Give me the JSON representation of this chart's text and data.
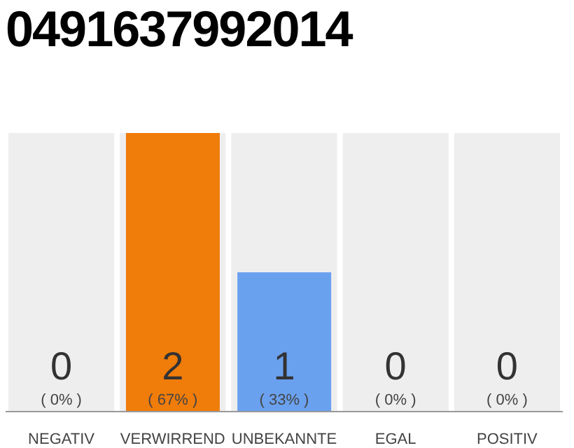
{
  "chart_data": {
    "type": "bar",
    "title": "0491637992014",
    "categories": [
      "NEGATIV",
      "VERWIRREND",
      "UNBEKANNTE",
      "EGAL",
      "POSITIV"
    ],
    "values": [
      0,
      2,
      1,
      0,
      0
    ],
    "colors": [
      "#999999",
      "#f07c0a",
      "#6aa1ef",
      "#999999",
      "#999999"
    ],
    "data_labels": true,
    "annotations": [
      "( 0% )",
      "( 67% )",
      "( 33% )",
      "( 0% )",
      "( 0% )"
    ]
  }
}
